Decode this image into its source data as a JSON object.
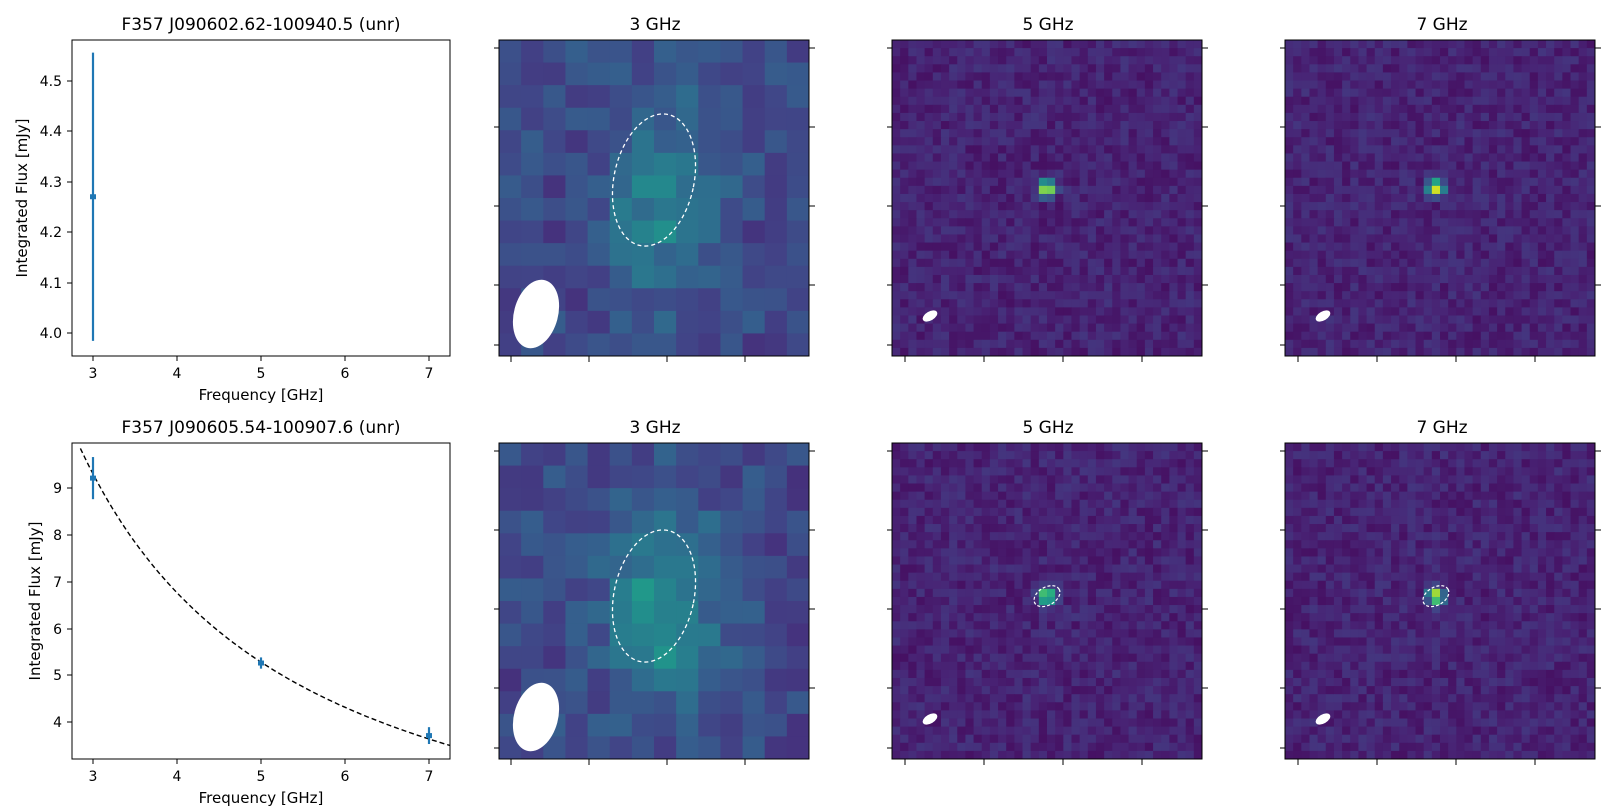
{
  "colors": {
    "series": "#1f77b4",
    "fit": "#000000",
    "ellipse": "#ffffff",
    "colormap": "viridis"
  },
  "rows": [
    {
      "title": "F357 J090602.62-100940.5 (unr)",
      "xlabel": "Frequency [GHz]",
      "ylabel": "Integrated Flux [mJy]",
      "xticks": [
        "3",
        "4",
        "5",
        "6",
        "7"
      ],
      "yticks": [
        "4.0",
        "4.1",
        "4.2",
        "4.3",
        "4.4",
        "4.5"
      ],
      "image_titles": [
        "3 GHz",
        "5 GHz",
        "7 GHz"
      ]
    },
    {
      "title": "F357 J090605.54-100907.6 (unr)",
      "xlabel": "Frequency [GHz]",
      "ylabel": "Integrated Flux [mJy]",
      "xticks": [
        "3",
        "4",
        "5",
        "6",
        "7"
      ],
      "yticks": [
        "4",
        "5",
        "6",
        "7",
        "8",
        "9"
      ],
      "image_titles": [
        "3 GHz",
        "5 GHz",
        "7 GHz"
      ]
    }
  ],
  "chart_data": [
    {
      "type": "scatter",
      "title": "F357 J090602.62-100940.5 (unr)",
      "xlabel": "Frequency [GHz]",
      "ylabel": "Integrated Flux [mJy]",
      "xlim": [
        2.75,
        7.25
      ],
      "ylim": [
        3.955,
        4.58
      ],
      "points": [
        {
          "x": 3,
          "y": 4.27,
          "yerr": 0.285
        }
      ],
      "fit": null
    },
    {
      "type": "scatter",
      "title": "F357 J090605.54-100907.6 (unr)",
      "xlabel": "Frequency [GHz]",
      "ylabel": "Integrated Flux [mJy]",
      "xlim": [
        2.75,
        7.25
      ],
      "ylim": [
        3.2,
        9.95
      ],
      "points": [
        {
          "x": 3,
          "y": 9.2,
          "yerr": 0.45
        },
        {
          "x": 5,
          "y": 5.25,
          "yerr": 0.12
        },
        {
          "x": 7,
          "y": 3.7,
          "yerr": 0.18
        }
      ],
      "fit": {
        "style": "dashed",
        "model": "power-law",
        "x_range": [
          2.85,
          7.25
        ],
        "anchor": {
          "x": 5,
          "y": 5.27
        },
        "index": -1.11
      }
    }
  ]
}
